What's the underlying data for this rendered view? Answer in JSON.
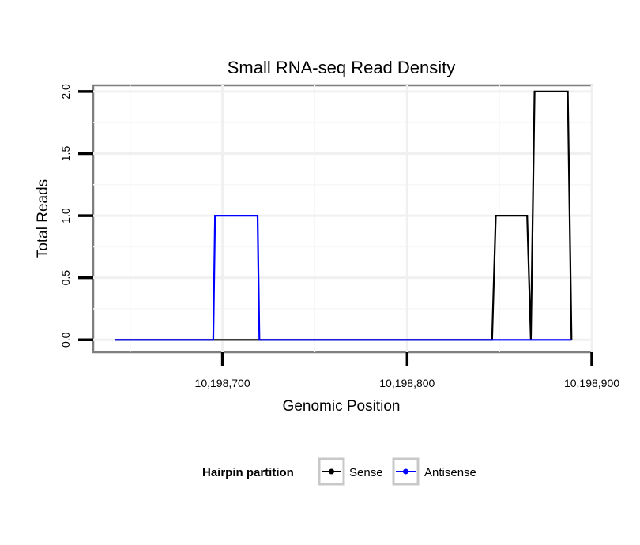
{
  "chart_data": {
    "type": "line",
    "title": "Small RNA-seq Read Density",
    "xlabel": "Genomic Position",
    "ylabel": "Total Reads",
    "xlim": [
      10198630,
      10198900
    ],
    "ylim": [
      -0.1,
      2.05
    ],
    "x_ticks": [
      10198700,
      10198800,
      10198900
    ],
    "x_tick_labels": [
      "10,198,700",
      "10,198,800",
      "10,198,900"
    ],
    "y_ticks": [
      0,
      0.5,
      1,
      1.5,
      2
    ],
    "y_tick_labels": [
      "0.0",
      "0.5",
      "1.0",
      "1.5",
      "2.0"
    ],
    "grid": true,
    "series": [
      {
        "name": "Sense",
        "color": "#000000",
        "x": [
          10198642,
          10198846,
          10198848,
          10198865,
          10198867,
          10198869,
          10198887,
          10198889
        ],
        "y": [
          0,
          0,
          1,
          1,
          0,
          2,
          2,
          0
        ]
      },
      {
        "name": "Antisense",
        "color": "#0000ff",
        "x": [
          10198642,
          10198695,
          10198696,
          10198719,
          10198720,
          10198889
        ],
        "y": [
          0,
          0,
          1,
          1,
          0,
          0
        ]
      }
    ],
    "legend": {
      "title": "Hairpin partition",
      "position": "bottom",
      "entries": [
        "Sense",
        "Antisense"
      ]
    }
  }
}
